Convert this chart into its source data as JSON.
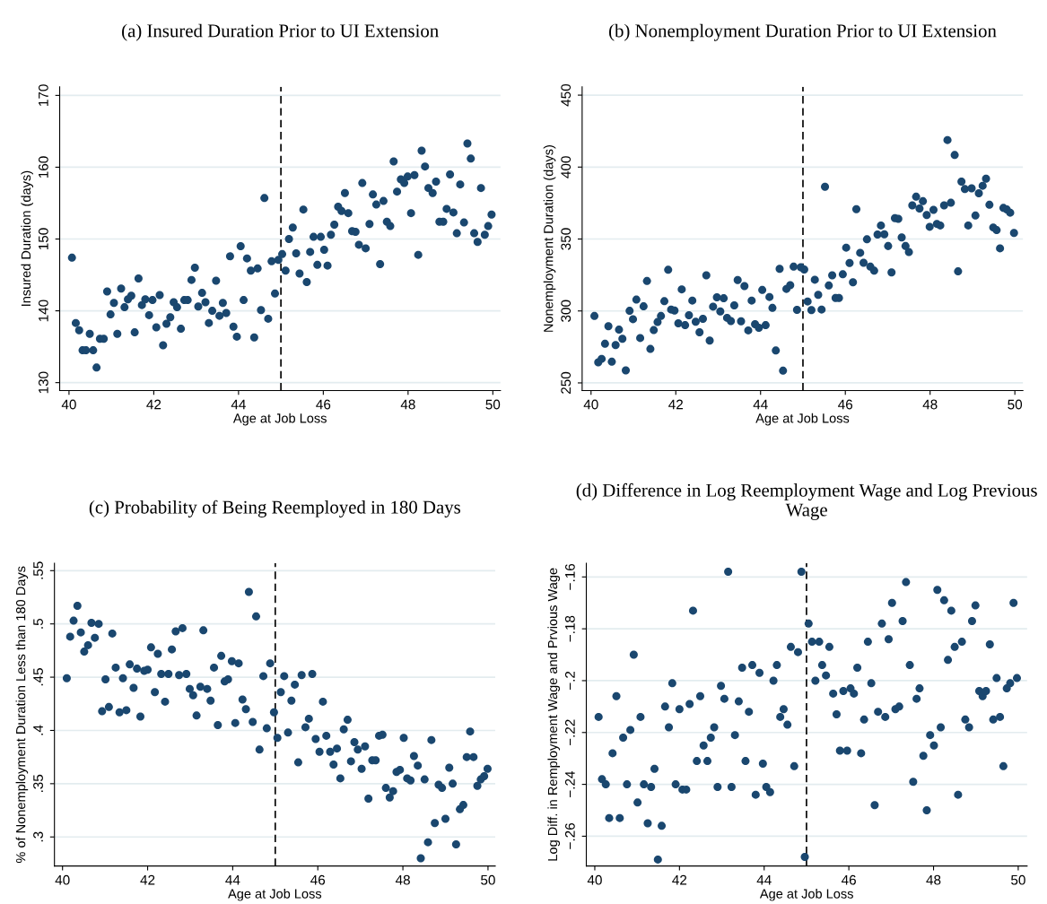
{
  "chart_data": [
    {
      "type": "scatter",
      "title": "(a) Insured Duration Prior to UI Extension",
      "xlabel": "Age at Job Loss",
      "ylabel": "Insured Duration (days)",
      "color": "#1a476f",
      "marker": "circle",
      "grid": "y",
      "xlim": [
        39.78,
        50.18
      ],
      "ylim": [
        128.9,
        171.2
      ],
      "xticks": [
        40,
        42,
        44,
        46,
        48,
        50
      ],
      "yticks": [
        130,
        140,
        150,
        160,
        170
      ],
      "ref_lines": [
        {
          "axis": "x",
          "value": 45,
          "color": "#000000",
          "line_style": "dashed"
        }
      ],
      "x": [
        40.07,
        40.16,
        40.24,
        40.32,
        40.4,
        40.49,
        40.57,
        40.65,
        40.73,
        40.82,
        40.9,
        40.98,
        41.06,
        41.14,
        41.23,
        41.31,
        41.39,
        41.47,
        41.55,
        41.64,
        41.72,
        41.8,
        41.89,
        41.97,
        42.06,
        42.14,
        42.22,
        42.3,
        42.39,
        42.47,
        42.55,
        42.64,
        42.72,
        42.8,
        42.89,
        42.97,
        43.05,
        43.14,
        43.22,
        43.3,
        43.38,
        43.47,
        43.55,
        43.63,
        43.71,
        43.8,
        43.88,
        43.96,
        44.05,
        44.12,
        44.2,
        44.29,
        44.37,
        44.45,
        44.53,
        44.61,
        44.7,
        44.78,
        44.86,
        44.94,
        45.03,
        45.11,
        45.19,
        45.28,
        45.36,
        45.44,
        45.53,
        45.61,
        45.69,
        45.77,
        45.86,
        45.94,
        46.02,
        46.1,
        46.18,
        46.26,
        46.35,
        46.43,
        46.51,
        46.59,
        46.68,
        46.76,
        46.84,
        46.92,
        47.0,
        47.09,
        47.17,
        47.25,
        47.34,
        47.42,
        47.5,
        47.58,
        47.66,
        47.74,
        47.83,
        47.91,
        47.99,
        48.07,
        48.15,
        48.24,
        48.32,
        48.4,
        48.48,
        48.58,
        48.66,
        48.74,
        48.83,
        48.91,
        48.99,
        49.07,
        49.15,
        49.23,
        49.32,
        49.4,
        49.48,
        49.56,
        49.64,
        49.72,
        49.81,
        49.89,
        49.97
      ],
      "values": [
        147.4,
        138.3,
        137.3,
        134.5,
        134.5,
        136.8,
        134.5,
        132.1,
        136.1,
        136.1,
        142.7,
        139.5,
        141.1,
        136.8,
        143.1,
        140.5,
        141.6,
        142.1,
        137.0,
        144.5,
        140.8,
        141.6,
        139.4,
        141.5,
        137.7,
        142.2,
        135.2,
        138.2,
        139.1,
        141.2,
        140.5,
        137.5,
        141.5,
        141.5,
        144.3,
        146.0,
        140.6,
        142.5,
        141.2,
        138.3,
        140.0,
        144.2,
        139.3,
        141.1,
        139.7,
        147.6,
        137.8,
        136.4,
        149.0,
        141.5,
        147.3,
        145.6,
        136.3,
        145.9,
        140.1,
        155.7,
        138.9,
        146.9,
        142.4,
        147.1,
        147.9,
        145.6,
        150.0,
        151.6,
        148.0,
        145.2,
        154.1,
        144.0,
        148.2,
        150.3,
        146.4,
        150.3,
        148.5,
        146.3,
        150.6,
        152.0,
        154.5,
        153.9,
        156.4,
        153.6,
        151.1,
        151.0,
        149.2,
        157.8,
        148.7,
        152.1,
        156.2,
        154.8,
        146.5,
        155.3,
        152.4,
        151.8,
        160.8,
        156.6,
        158.3,
        157.8,
        158.7,
        153.6,
        158.9,
        147.8,
        162.3,
        160.1,
        157.1,
        156.4,
        158.0,
        152.4,
        152.4,
        154.2,
        159.0,
        153.7,
        150.8,
        157.6,
        152.3,
        163.3,
        161.2,
        150.8,
        149.6,
        157.1,
        150.6,
        151.8,
        153.4
      ]
    },
    {
      "type": "scatter",
      "title": "(b) Nonemployment Duration Prior to UI Extension",
      "xlabel": "Age at Job Loss",
      "ylabel": "Nonemployment Duration (days)",
      "color": "#1a476f",
      "marker": "circle",
      "grid": "y",
      "xlim": [
        39.79,
        50.19
      ],
      "ylim": [
        244.7,
        455.8
      ],
      "xticks": [
        40,
        42,
        44,
        46,
        48,
        50
      ],
      "yticks": [
        250,
        300,
        350,
        400,
        450
      ],
      "ref_lines": [
        {
          "axis": "x",
          "value": 45,
          "color": "#000000",
          "line_style": "dashed"
        }
      ],
      "x": [
        40.08,
        40.17,
        40.25,
        40.33,
        40.41,
        40.49,
        40.58,
        40.66,
        40.74,
        40.82,
        40.91,
        40.99,
        41.07,
        41.16,
        41.24,
        41.32,
        41.4,
        41.48,
        41.57,
        41.65,
        41.73,
        41.82,
        41.89,
        41.97,
        42.06,
        42.14,
        42.22,
        42.31,
        42.39,
        42.47,
        42.56,
        42.64,
        42.72,
        42.8,
        42.88,
        42.97,
        43.05,
        43.13,
        43.21,
        43.3,
        43.38,
        43.46,
        43.54,
        43.62,
        43.71,
        43.79,
        43.87,
        43.96,
        44.04,
        44.12,
        44.21,
        44.28,
        44.36,
        44.45,
        44.53,
        44.61,
        44.7,
        44.78,
        44.86,
        44.95,
        45.03,
        45.11,
        45.2,
        45.28,
        45.36,
        45.44,
        45.52,
        45.61,
        45.69,
        45.77,
        45.85,
        45.94,
        46.02,
        46.1,
        46.18,
        46.26,
        46.35,
        46.43,
        46.51,
        46.59,
        46.68,
        46.76,
        46.84,
        46.92,
        47.01,
        47.09,
        47.17,
        47.25,
        47.33,
        47.42,
        47.5,
        47.58,
        47.67,
        47.75,
        47.83,
        47.92,
        47.99,
        48.08,
        48.16,
        48.24,
        48.33,
        48.41,
        48.49,
        48.58,
        48.66,
        48.74,
        48.82,
        48.9,
        48.98,
        49.07,
        49.15,
        49.24,
        49.32,
        49.4,
        49.49,
        49.57,
        49.65,
        49.73,
        49.81,
        49.89,
        49.98
      ],
      "values": [
        296.5,
        264.3,
        266.7,
        277.2,
        289.4,
        264.7,
        276.3,
        287.0,
        280.7,
        258.7,
        300.1,
        294.3,
        307.9,
        281.2,
        303.2,
        320.8,
        273.6,
        286.7,
        292.3,
        296.5,
        306.8,
        328.6,
        301.0,
        300.3,
        291.4,
        315.0,
        290.1,
        297.0,
        307.2,
        292.5,
        285.2,
        294.5,
        324.8,
        279.4,
        303.0,
        309.5,
        299.7,
        308.8,
        295.2,
        293.0,
        303.9,
        321.5,
        292.8,
        317.3,
        286.5,
        307.2,
        290.8,
        288.3,
        314.6,
        290.1,
        309.7,
        302.1,
        272.5,
        329.3,
        258.5,
        315.3,
        317.9,
        330.8,
        300.8,
        330.4,
        328.8,
        306.6,
        300.6,
        321.7,
        311.2,
        301.0,
        386.3,
        317.7,
        324.8,
        309.0,
        309.0,
        325.5,
        344.0,
        333.3,
        319.9,
        370.7,
        340.4,
        333.5,
        349.8,
        330.8,
        328.0,
        353.1,
        359.4,
        353.3,
        345.1,
        326.8,
        364.5,
        364.0,
        351.1,
        345.1,
        340.9,
        373.4,
        379.4,
        371.2,
        376.3,
        366.7,
        358.5,
        370.3,
        360.5,
        359.4,
        373.4,
        418.8,
        375.2,
        408.4,
        327.5,
        389.9,
        384.7,
        359.4,
        385.2,
        366.3,
        381.8,
        387.0,
        391.9,
        373.8,
        358.0,
        356.2,
        343.5,
        371.6,
        370.5,
        368.3,
        354.2
      ]
    },
    {
      "type": "scatter",
      "title": "(c) Probability of Being Reemployed in 180 Days",
      "xlabel": "Age at Job Loss",
      "ylabel": "% of Nonemployment Duration Less than 180 Days",
      "color": "#1a476f",
      "marker": "circle",
      "grid": "y",
      "xlim": [
        39.81,
        50.17
      ],
      "ylim": [
        0.2727,
        0.557
      ],
      "xticks": [
        40,
        42,
        44,
        46,
        48,
        50
      ],
      "yticks": [
        {
          "value": 0.3,
          "label": ".3"
        },
        {
          "value": 0.35,
          "label": ".35"
        },
        {
          "value": 0.4,
          "label": ".4"
        },
        {
          "value": 0.45,
          "label": ".45"
        },
        {
          "value": 0.5,
          "label": ".5"
        },
        {
          "value": 0.55,
          "label": ".55"
        }
      ],
      "ref_lines": [
        {
          "axis": "x",
          "value": 45,
          "color": "#000000",
          "line_style": "dashed"
        }
      ],
      "x": [
        40.1,
        40.18,
        40.26,
        40.35,
        40.43,
        40.51,
        40.6,
        40.68,
        40.76,
        40.85,
        40.93,
        41.01,
        41.09,
        41.17,
        41.25,
        41.34,
        41.42,
        41.5,
        41.58,
        41.67,
        41.75,
        41.83,
        41.92,
        42.0,
        42.08,
        42.17,
        42.24,
        42.32,
        42.41,
        42.49,
        42.57,
        42.66,
        42.74,
        42.82,
        42.91,
        42.99,
        43.07,
        43.15,
        43.24,
        43.31,
        43.4,
        43.48,
        43.56,
        43.65,
        43.73,
        43.81,
        43.89,
        43.98,
        44.06,
        44.14,
        44.23,
        44.31,
        44.38,
        44.47,
        44.55,
        44.63,
        44.72,
        44.8,
        44.88,
        44.97,
        45.05,
        45.13,
        45.21,
        45.3,
        45.38,
        45.46,
        45.54,
        45.62,
        45.71,
        45.79,
        45.87,
        45.95,
        46.04,
        46.12,
        46.2,
        46.29,
        46.37,
        46.45,
        46.53,
        46.61,
        46.7,
        46.78,
        46.86,
        46.94,
        47.03,
        47.11,
        47.19,
        47.28,
        47.36,
        47.44,
        47.52,
        47.6,
        47.69,
        47.77,
        47.85,
        47.93,
        48.02,
        48.1,
        48.18,
        48.26,
        48.35,
        48.42,
        48.51,
        48.59,
        48.67,
        48.75,
        48.84,
        48.92,
        49.0,
        49.09,
        49.17,
        49.25,
        49.34,
        49.42,
        49.5,
        49.58,
        49.66,
        49.75,
        49.83,
        49.91,
        49.99
      ],
      "values": [
        0.449,
        0.488,
        0.503,
        0.517,
        0.492,
        0.474,
        0.48,
        0.501,
        0.487,
        0.5,
        0.418,
        0.448,
        0.422,
        0.491,
        0.459,
        0.417,
        0.449,
        0.419,
        0.462,
        0.44,
        0.458,
        0.413,
        0.456,
        0.457,
        0.478,
        0.436,
        0.472,
        0.453,
        0.427,
        0.453,
        0.476,
        0.493,
        0.452,
        0.496,
        0.453,
        0.439,
        0.433,
        0.414,
        0.441,
        0.494,
        0.439,
        0.428,
        0.459,
        0.405,
        0.47,
        0.446,
        0.448,
        0.465,
        0.407,
        0.463,
        0.429,
        0.42,
        0.53,
        0.408,
        0.507,
        0.382,
        0.451,
        0.402,
        0.463,
        0.417,
        0.393,
        0.436,
        0.451,
        0.398,
        0.428,
        0.443,
        0.37,
        0.452,
        0.403,
        0.411,
        0.453,
        0.392,
        0.38,
        0.427,
        0.395,
        0.38,
        0.368,
        0.383,
        0.355,
        0.401,
        0.41,
        0.371,
        0.389,
        0.382,
        0.364,
        0.385,
        0.336,
        0.372,
        0.372,
        0.395,
        0.396,
        0.346,
        0.337,
        0.343,
        0.361,
        0.363,
        0.393,
        0.355,
        0.353,
        0.376,
        0.367,
        0.28,
        0.354,
        0.295,
        0.391,
        0.313,
        0.349,
        0.346,
        0.317,
        0.365,
        0.35,
        0.293,
        0.326,
        0.33,
        0.375,
        0.399,
        0.375,
        0.348,
        0.354,
        0.357,
        0.364
      ]
    },
    {
      "type": "scatter",
      "title": "(d) Difference in Log Reemployment Wage and Log Previous Wage",
      "xlabel": "Age at Job Loss",
      "ylabel": "Log Diff. in Remployment Wage and Prvious Wage",
      "color": "#1a476f",
      "marker": "circle",
      "grid": "y",
      "xlim": [
        39.8,
        50.21
      ],
      "ylim": [
        -0.2715,
        -0.1547
      ],
      "xticks": [
        40,
        42,
        44,
        46,
        48,
        50
      ],
      "yticks": [
        {
          "value": -0.26,
          "label": "−.26"
        },
        {
          "value": -0.24,
          "label": "−.24"
        },
        {
          "value": -0.22,
          "label": "−.22"
        },
        {
          "value": -0.2,
          "label": "−.2"
        },
        {
          "value": -0.18,
          "label": "−.18"
        },
        {
          "value": -0.16,
          "label": "−.16"
        }
      ],
      "ref_lines": [
        {
          "axis": "x",
          "value": 45,
          "color": "#000000",
          "line_style": "dashed"
        }
      ],
      "x": [
        40.09,
        40.17,
        40.26,
        40.34,
        40.42,
        40.51,
        40.59,
        40.67,
        40.76,
        40.84,
        40.92,
        41.01,
        41.08,
        41.16,
        41.25,
        41.33,
        41.41,
        41.49,
        41.58,
        41.66,
        41.75,
        41.83,
        41.91,
        42.0,
        42.07,
        42.16,
        42.24,
        42.32,
        42.41,
        42.49,
        42.57,
        42.66,
        42.74,
        42.82,
        42.9,
        42.98,
        43.06,
        43.15,
        43.23,
        43.31,
        43.4,
        43.48,
        43.56,
        43.64,
        43.72,
        43.8,
        43.89,
        43.97,
        44.05,
        44.14,
        44.22,
        44.3,
        44.38,
        44.46,
        44.55,
        44.63,
        44.71,
        44.8,
        44.88,
        44.96,
        45.05,
        45.13,
        45.21,
        45.3,
        45.37,
        45.46,
        45.54,
        45.63,
        45.71,
        45.79,
        45.87,
        45.96,
        46.04,
        46.12,
        46.2,
        46.29,
        46.36,
        46.45,
        46.53,
        46.61,
        46.69,
        46.78,
        46.86,
        46.94,
        47.02,
        47.1,
        47.19,
        47.27,
        47.35,
        47.44,
        47.52,
        47.6,
        47.67,
        47.76,
        47.84,
        47.92,
        48.01,
        48.09,
        48.17,
        48.25,
        48.34,
        48.42,
        48.5,
        48.58,
        48.67,
        48.75,
        48.84,
        48.91,
        48.99,
        49.08,
        49.16,
        49.24,
        49.33,
        49.41,
        49.49,
        49.57,
        49.65,
        49.73,
        49.81,
        49.89,
        49.97
      ],
      "values": [
        -0.214,
        -0.238,
        -0.24,
        -0.253,
        -0.228,
        -0.206,
        -0.253,
        -0.222,
        -0.24,
        -0.219,
        -0.19,
        -0.247,
        -0.214,
        -0.24,
        -0.255,
        -0.241,
        -0.234,
        -0.269,
        -0.256,
        -0.21,
        -0.218,
        -0.201,
        -0.24,
        -0.211,
        -0.242,
        -0.242,
        -0.209,
        -0.173,
        -0.231,
        -0.206,
        -0.225,
        -0.231,
        -0.222,
        -0.218,
        -0.241,
        -0.202,
        -0.207,
        -0.158,
        -0.241,
        -0.221,
        -0.208,
        -0.195,
        -0.231,
        -0.212,
        -0.194,
        -0.244,
        -0.197,
        -0.232,
        -0.241,
        -0.243,
        -0.2,
        -0.194,
        -0.214,
        -0.211,
        -0.217,
        -0.187,
        -0.233,
        -0.189,
        -0.158,
        -0.268,
        -0.178,
        -0.185,
        -0.2,
        -0.185,
        -0.194,
        -0.198,
        -0.187,
        -0.205,
        -0.213,
        -0.227,
        -0.204,
        -0.227,
        -0.203,
        -0.205,
        -0.195,
        -0.228,
        -0.215,
        -0.185,
        -0.201,
        -0.248,
        -0.212,
        -0.178,
        -0.214,
        -0.184,
        -0.17,
        -0.211,
        -0.21,
        -0.177,
        -0.162,
        -0.194,
        -0.239,
        -0.207,
        -0.203,
        -0.229,
        -0.25,
        -0.221,
        -0.225,
        -0.165,
        -0.218,
        -0.169,
        -0.192,
        -0.173,
        -0.187,
        -0.244,
        -0.185,
        -0.215,
        -0.218,
        -0.177,
        -0.171,
        -0.204,
        -0.206,
        -0.204,
        -0.186,
        -0.215,
        -0.199,
        -0.214,
        -0.233,
        -0.203,
        -0.201,
        -0.17,
        -0.199
      ]
    }
  ]
}
